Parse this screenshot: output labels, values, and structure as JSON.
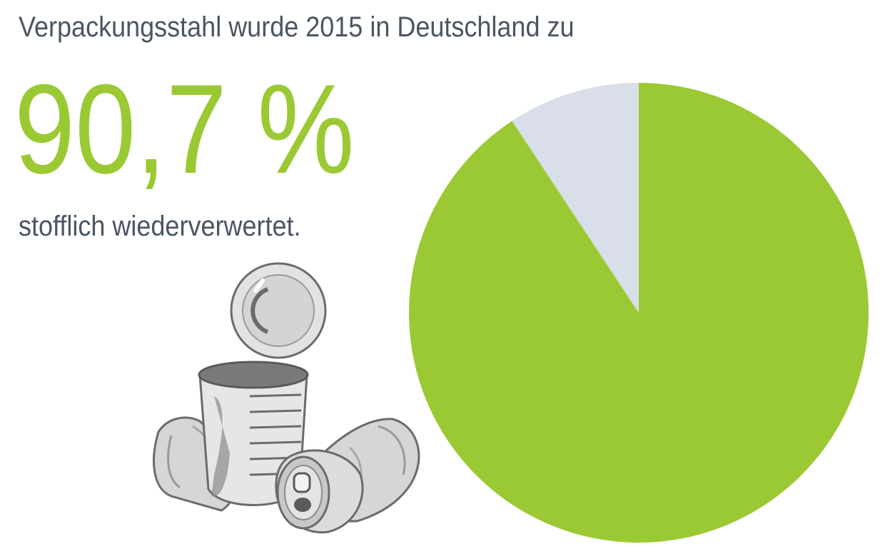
{
  "headline": "Verpackungsstahl wurde 2015 in Deutschland zu",
  "big_value": "90,7 %",
  "subline": "stofflich wiederverwertet.",
  "colors": {
    "accent": "#9bc933",
    "remainder": "#d9dee8",
    "text": "#4b5563"
  },
  "illustration": {
    "icon": "tin-cans-icon"
  },
  "chart_data": {
    "type": "pie",
    "title": "",
    "slices": [
      {
        "name": "",
        "value": 90.7,
        "color": "#9bc933"
      },
      {
        "name": "",
        "value": 9.3,
        "color": "#d9dee8"
      }
    ],
    "start_angle_deg": 0,
    "direction": "clockwise"
  }
}
